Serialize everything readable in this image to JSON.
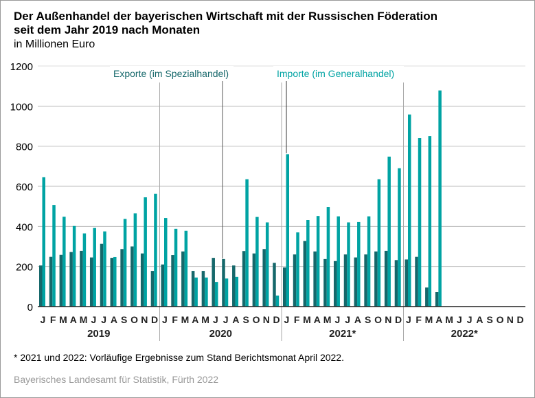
{
  "chart_data": {
    "type": "bar",
    "title": "Der Außenhandel der bayerischen Wirtschaft mit der Russischen Föderation",
    "title2": "seit dem Jahr 2019 nach Monaten",
    "subtitle": "in Millionen Euro",
    "ylim": [
      0,
      1200
    ],
    "yticks": [
      "0",
      "200",
      "400",
      "600",
      "800",
      "1000",
      "1200"
    ],
    "months": [
      "J",
      "F",
      "M",
      "A",
      "M",
      "J",
      "J",
      "A",
      "S",
      "O",
      "N",
      "D"
    ],
    "years": [
      "2019",
      "2020",
      "2021*",
      "2022*"
    ],
    "series": [
      {
        "name": "Exporte (im Spezialhandel)",
        "color": "#16686b",
        "values": [
          205,
          248,
          258,
          272,
          278,
          245,
          313,
          243,
          287,
          300,
          265,
          178,
          210,
          257,
          275,
          178,
          178,
          243,
          237,
          205,
          277,
          265,
          287,
          218,
          195,
          260,
          327,
          275,
          237,
          227,
          260,
          245,
          260,
          275,
          278,
          232,
          235,
          248,
          95,
          72
        ]
      },
      {
        "name": "Importe (im Generalhandel)",
        "color": "#00a3a3",
        "values": [
          645,
          507,
          448,
          402,
          365,
          392,
          375,
          247,
          437,
          465,
          545,
          563,
          442,
          388,
          378,
          145,
          145,
          123,
          140,
          148,
          635,
          447,
          420,
          55,
          760,
          370,
          432,
          452,
          497,
          450,
          420,
          422,
          450,
          635,
          748,
          690,
          958,
          840,
          850,
          1078
        ]
      }
    ]
  },
  "footnote": "* 2021 und 2022: Vorläufige Ergebnisse zum Stand Berichtsmonat April 2022.",
  "source": "Bayerisches Landesamt für Statistik, Fürth 2022"
}
